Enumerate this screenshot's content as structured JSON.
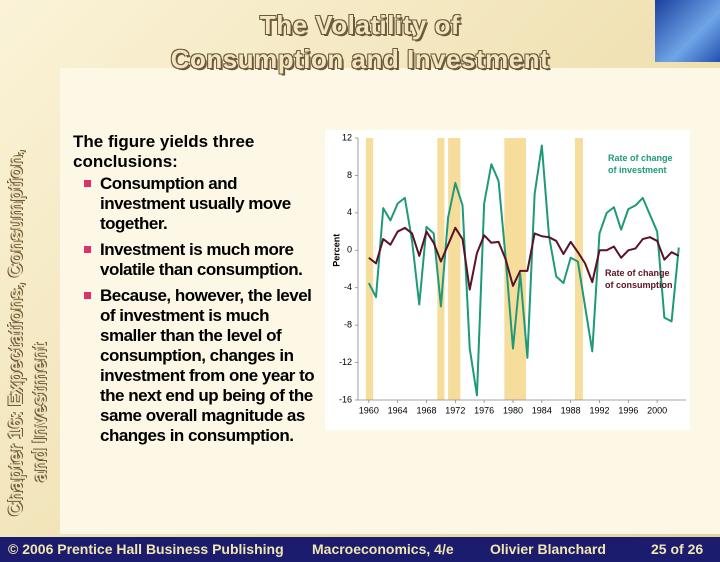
{
  "slide": {
    "title_lines": [
      "The Volatility of",
      "Consumption and Investment"
    ],
    "side_label_lines": [
      "Chapter 16: Expectations, Consumption,",
      "and Investment"
    ],
    "intro": "The figure yields three conclusions:",
    "bullets": [
      "Consumption and investment usually move together.",
      "Investment is much more volatile than consumption.",
      "Because, however, the level of investment is much smaller than the level of consumption, changes in investment from one year to the next end up being of the same overall magnitude as changes in consumption."
    ],
    "footer": {
      "publisher": "© 2006 Prentice Hall Business Publishing",
      "book": "Macroeconomics, 4/e",
      "author": "Olivier Blanchard",
      "page": "25 of 26"
    }
  },
  "chart_data": {
    "type": "line",
    "y_label": "Percent",
    "x": [
      1960,
      1961,
      1962,
      1963,
      1964,
      1965,
      1966,
      1967,
      1968,
      1969,
      1970,
      1971,
      1972,
      1973,
      1974,
      1975,
      1976,
      1977,
      1978,
      1979,
      1980,
      1981,
      1982,
      1983,
      1984,
      1985,
      1986,
      1987,
      1988,
      1989,
      1990,
      1991,
      1992,
      1993,
      1994,
      1995,
      1996,
      1997,
      1998,
      1999,
      2000,
      2001,
      2002,
      2003
    ],
    "series": [
      {
        "name": "Rate of change of investment",
        "color": "#1e9a78",
        "values": [
          -3.5,
          -5,
          4.5,
          3.2,
          5,
          5.6,
          1,
          -5.8,
          2.5,
          1.8,
          -6,
          3.5,
          7.2,
          4.8,
          -10.5,
          -15.5,
          5,
          9.2,
          7.4,
          -1,
          -10.5,
          -2.5,
          -11.5,
          6,
          11.2,
          1.5,
          -2.8,
          -3.5,
          -0.8,
          -1.2,
          -6,
          -10.8,
          1.8,
          4,
          4.6,
          2.2,
          4.4,
          4.8,
          5.6,
          3.8,
          2,
          -7.2,
          -7.6,
          0.3
        ]
      },
      {
        "name": "Rate of change of consumption",
        "color": "#5a1224",
        "values": [
          -0.8,
          -1.4,
          1.2,
          0.6,
          2,
          2.4,
          1.8,
          -0.6,
          2,
          0.8,
          -1.2,
          0.6,
          2.4,
          1.2,
          -4.2,
          -0.3,
          1.6,
          0.8,
          0.9,
          -1,
          -3.8,
          -2.2,
          -2.2,
          1.8,
          1.5,
          1.4,
          1,
          -0.4,
          0.9,
          -0.2,
          -1.4,
          -3.4,
          0,
          0,
          0.4,
          -0.8,
          0,
          0.2,
          1.2,
          1.4,
          1,
          -1,
          -0.2,
          -0.6
        ]
      }
    ],
    "recessions": [
      [
        1959.6,
        1960.6
      ],
      [
        1969.5,
        1970.5
      ],
      [
        1971,
        1972.7
      ],
      [
        1978.8,
        1981.8
      ],
      [
        1988.6,
        1989.7
      ]
    ],
    "recession_color": "#f6dd9c",
    "xlim": [
      1958.5,
      2004
    ],
    "xticks": [
      1960,
      1964,
      1968,
      1972,
      1976,
      1980,
      1984,
      1988,
      1992,
      1996,
      2000
    ],
    "ylim": [
      -16,
      12
    ],
    "yticks": [
      -16,
      -12,
      -8,
      -4,
      0,
      4,
      8,
      12
    ]
  }
}
